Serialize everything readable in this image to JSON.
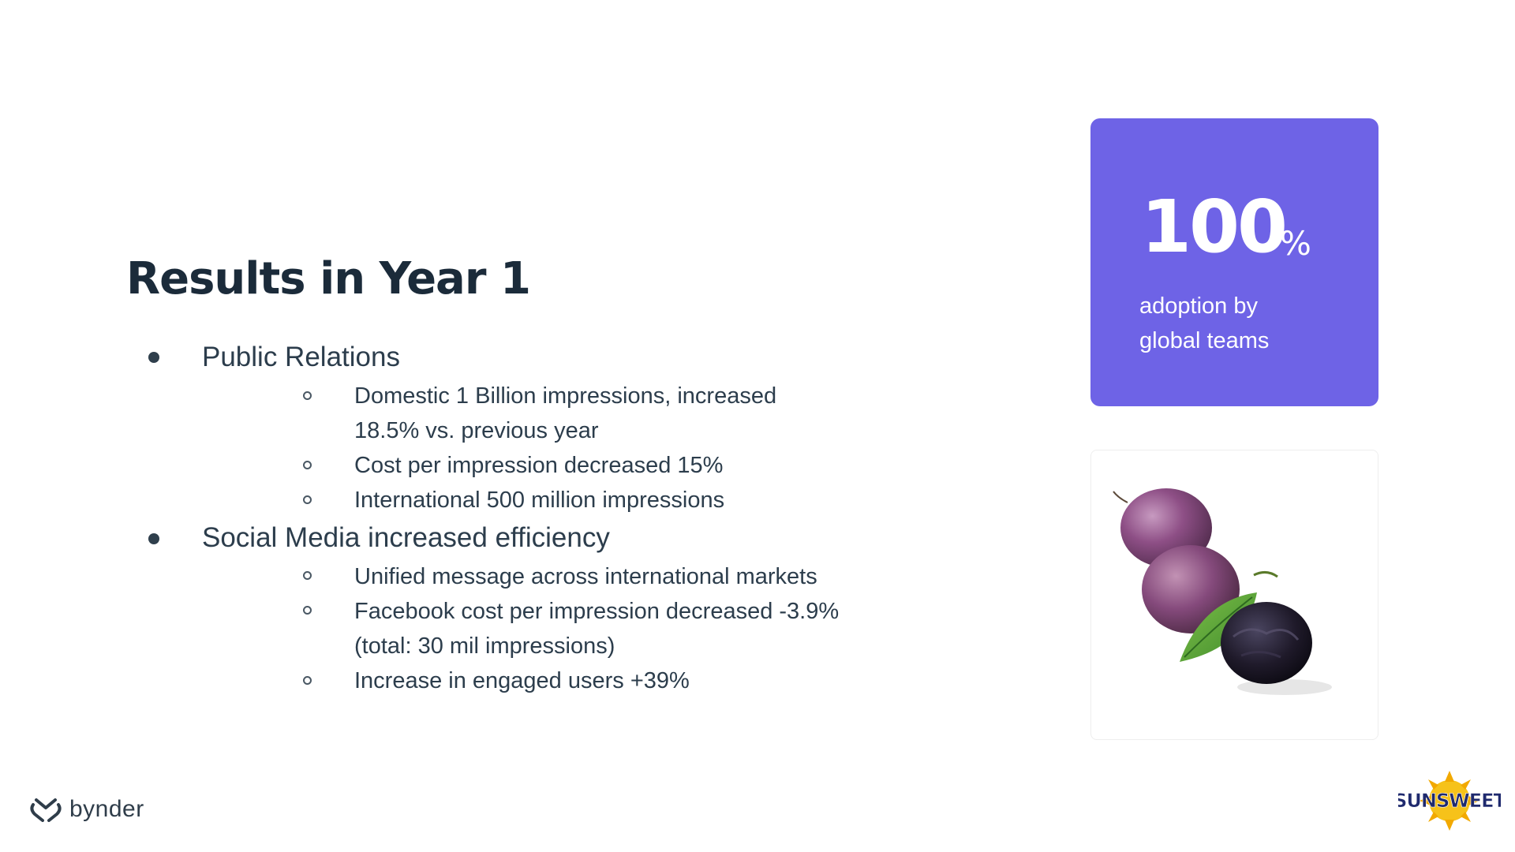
{
  "slide": {
    "title": "Results in Year 1"
  },
  "bullets": {
    "pr": {
      "label": "Public Relations",
      "items": [
        {
          "line1": "Domestic 1 Billion impressions, increased",
          "line2": "18.5% vs. previous year"
        },
        {
          "line1": "Cost per impression decreased 15%"
        },
        {
          "line1": "International 500 million impressions"
        }
      ]
    },
    "social": {
      "label": "Social Media increased efficiency",
      "items": [
        {
          "line1": "Unified message across international markets"
        },
        {
          "line1": "Facebook cost per impression decreased -3.9%",
          "line2": "(total: 30 mil impressions)"
        },
        {
          "line1": "Increase in engaged users +39%"
        }
      ]
    }
  },
  "stat_card": {
    "number": "100",
    "suffix": "%",
    "caption_line1": "adoption by",
    "caption_line2": "global teams",
    "color": "#6e63e6"
  },
  "photo": {
    "icon": "plums-and-prune-photo"
  },
  "footer": {
    "left_logo_text": "bynder",
    "left_logo_icon": "bynder-heart-icon",
    "right_logo_text": "SUNSWEET"
  }
}
